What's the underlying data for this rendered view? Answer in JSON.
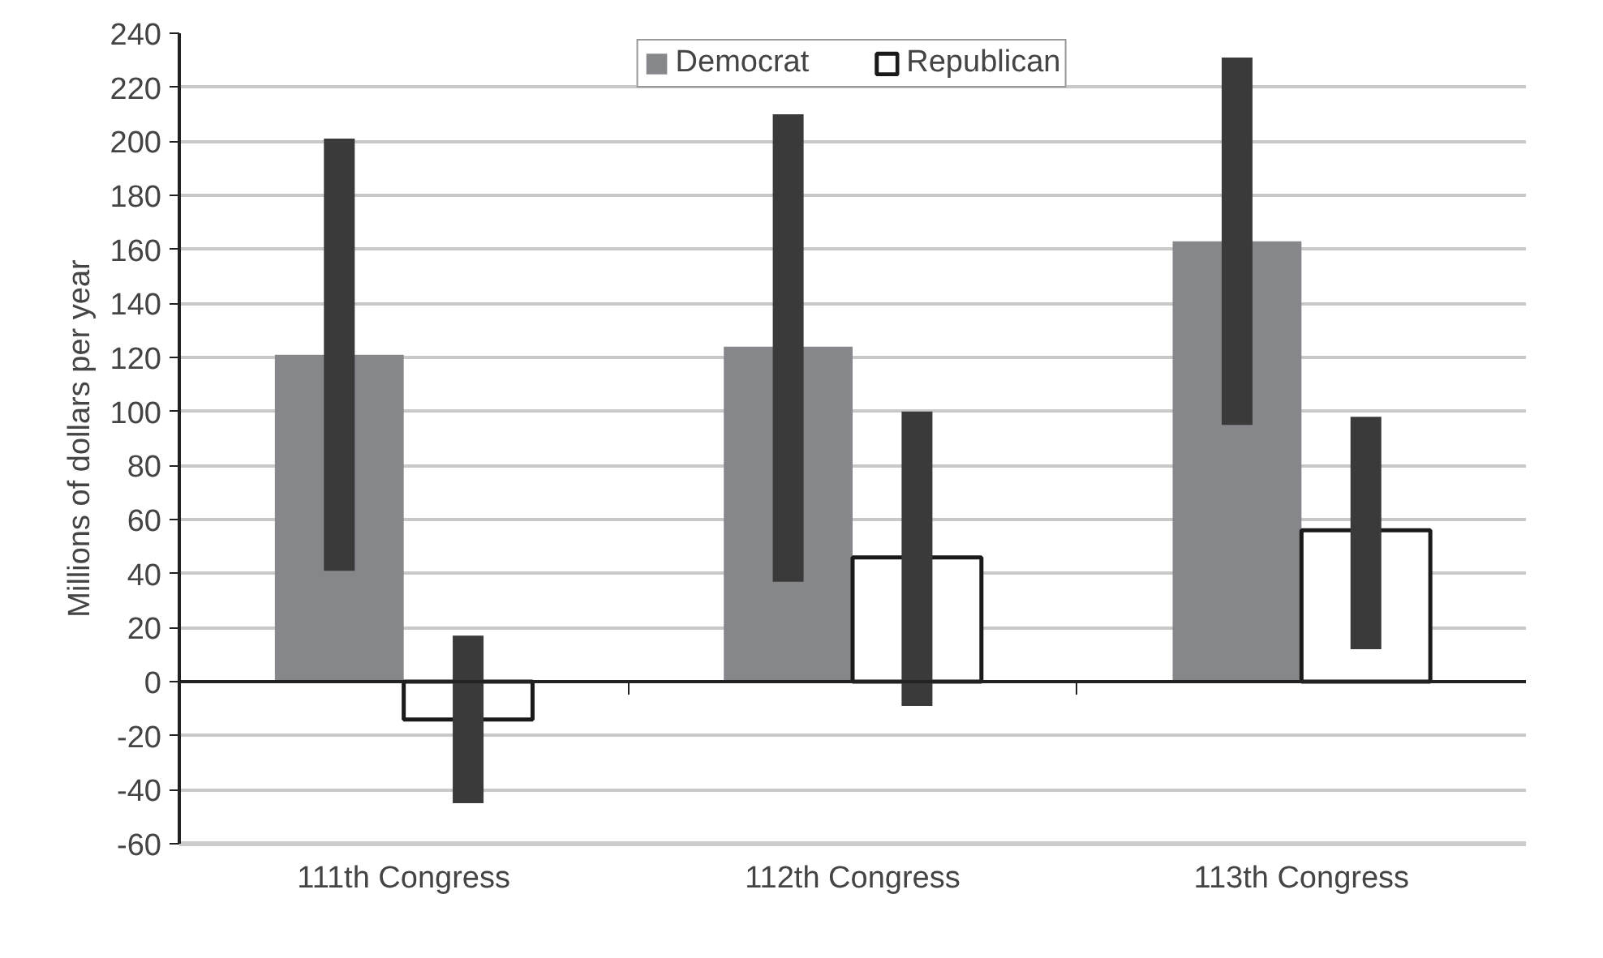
{
  "chart_data": {
    "type": "bar",
    "ylabel": "Millions of dollars per year",
    "categories": [
      "111th Congress",
      "112th Congress",
      "113th Congress"
    ],
    "series": [
      {
        "name": "Democrat",
        "color": "#86878b",
        "values": [
          121,
          124,
          163
        ],
        "errors": [
          [
            41,
            201
          ],
          [
            37,
            210
          ],
          [
            95,
            231
          ]
        ]
      },
      {
        "name": "Republican",
        "color": "#ffffff",
        "values": [
          -14,
          46,
          56
        ],
        "errors": [
          [
            -45,
            17
          ],
          [
            -9,
            100
          ],
          [
            12,
            98
          ]
        ]
      }
    ],
    "ylim": [
      -60,
      240
    ],
    "yticks": [
      -60,
      -40,
      -20,
      0,
      20,
      40,
      60,
      80,
      100,
      120,
      140,
      160,
      180,
      200,
      220,
      240
    ],
    "grid": "y",
    "legend": "top"
  }
}
